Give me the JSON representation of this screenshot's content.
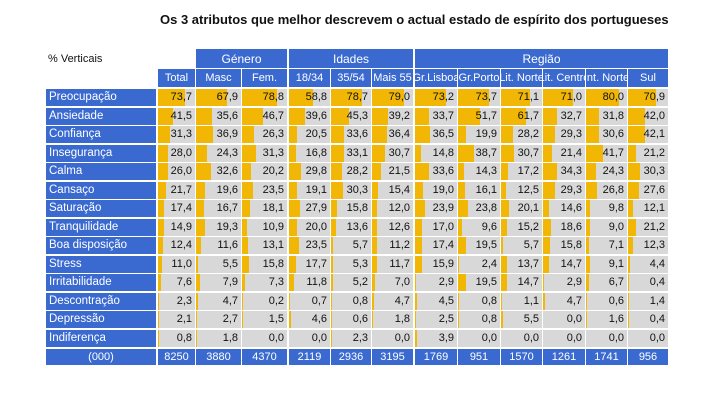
{
  "title": "Os 3 atributos que melhor descrevem o actual estado de espírito dos portugueses",
  "corner_label": "% Verticais",
  "groups": [
    "Género",
    "Idades",
    "Região"
  ],
  "columns": [
    "Total",
    "Masc",
    "Fem.",
    "18/34",
    "35/54",
    "Mais 55",
    "Gr.Lisboa",
    "Gr.Porto",
    "Lit. Norte",
    "Lit. Centro",
    "Int. Norte",
    "Sul"
  ],
  "rows": [
    {
      "label": "Preocupação",
      "values": [
        "73,7",
        "67,9",
        "78,8",
        "58,8",
        "78,7",
        "79,0",
        "73,2",
        "73,7",
        "71,1",
        "71,0",
        "80,0",
        "70,9"
      ]
    },
    {
      "label": "Ansiedade",
      "values": [
        "41,5",
        "35,6",
        "46,7",
        "39,6",
        "45,3",
        "39,2",
        "33,7",
        "51,7",
        "61,7",
        "32,7",
        "31,8",
        "42,0"
      ]
    },
    {
      "label": "Confiança",
      "values": [
        "31,3",
        "36,9",
        "26,3",
        "20,5",
        "33,6",
        "36,4",
        "36,5",
        "19,9",
        "28,2",
        "29,3",
        "30,6",
        "42,1"
      ]
    },
    {
      "label": "Insegurança",
      "values": [
        "28,0",
        "24,3",
        "31,3",
        "16,8",
        "33,1",
        "30,7",
        "14,8",
        "38,7",
        "30,7",
        "21,4",
        "41,7",
        "21,2"
      ]
    },
    {
      "label": "Calma",
      "values": [
        "26,0",
        "32,6",
        "20,2",
        "29,8",
        "28,2",
        "21,5",
        "33,6",
        "14,3",
        "17,2",
        "34,3",
        "24,3",
        "30,3"
      ]
    },
    {
      "label": "Cansaço",
      "values": [
        "21,7",
        "19,6",
        "23,5",
        "19,1",
        "30,3",
        "15,4",
        "19,0",
        "16,1",
        "12,5",
        "29,3",
        "26,8",
        "27,6"
      ]
    },
    {
      "label": "Saturação",
      "values": [
        "17,4",
        "16,7",
        "18,1",
        "27,9",
        "15,8",
        "12,0",
        "23,9",
        "23,8",
        "20,1",
        "14,6",
        "9,8",
        "12,1"
      ]
    },
    {
      "label": "Tranquilidade",
      "values": [
        "14,9",
        "19,3",
        "10,9",
        "20,0",
        "13,6",
        "12,6",
        "17,0",
        "9,6",
        "15,2",
        "18,6",
        "9,0",
        "21,2"
      ]
    },
    {
      "label": "Boa disposição",
      "values": [
        "12,4",
        "11,6",
        "13,1",
        "23,5",
        "5,7",
        "11,2",
        "17,4",
        "19,5",
        "5,7",
        "15,8",
        "7,1",
        "12,3"
      ]
    },
    {
      "label": "Stress",
      "values": [
        "11,0",
        "5,5",
        "15,8",
        "17,7",
        "5,3",
        "11,7",
        "15,9",
        "2,4",
        "13,7",
        "14,7",
        "9,1",
        "4,4"
      ]
    },
    {
      "label": "Irritabilidade",
      "values": [
        "7,6",
        "7,9",
        "7,3",
        "11,8",
        "5,2",
        "7,0",
        "2,9",
        "19,5",
        "14,7",
        "2,9",
        "6,7",
        "0,4"
      ]
    },
    {
      "label": "Descontração",
      "values": [
        "2,3",
        "4,7",
        "0,2",
        "0,7",
        "0,8",
        "4,7",
        "4,5",
        "0,8",
        "1,1",
        "4,7",
        "0,6",
        "1,4"
      ]
    },
    {
      "label": "Depressão",
      "values": [
        "2,1",
        "2,7",
        "1,5",
        "4,6",
        "0,6",
        "1,8",
        "2,5",
        "0,8",
        "5,5",
        "0,0",
        "1,6",
        "0,4"
      ]
    },
    {
      "label": "Indiferença",
      "values": [
        "0,8",
        "1,8",
        "0,0",
        "0,0",
        "2,3",
        "0,0",
        "3,9",
        "0,0",
        "0,0",
        "0,0",
        "0,0",
        "0,0"
      ]
    }
  ],
  "footer": {
    "label": "(000)",
    "values": [
      "8250",
      "3880",
      "4370",
      "2119",
      "2936",
      "3195",
      "1769",
      "951",
      "1570",
      "1261",
      "1741",
      "956"
    ]
  },
  "colors": {
    "header_bg": "#3a6ad0",
    "bar": "#f2b705",
    "cell_bg": "#d8d8d8",
    "text": "#111111"
  },
  "chart_data": {
    "type": "table",
    "title": "Os 3 atributos que melhor descrevem o actual estado de espírito dos portugueses",
    "unit_label": "% Verticais",
    "scale_max": 100,
    "groups": [
      {
        "name": "Género",
        "columns": [
          "Masc",
          "Fem."
        ]
      },
      {
        "name": "Idades",
        "columns": [
          "18/34",
          "35/54",
          "Mais 55"
        ]
      },
      {
        "name": "Região",
        "columns": [
          "Gr.Lisboa",
          "Gr.Porto",
          "Lit. Norte",
          "Lit. Centro",
          "Int. Norte",
          "Sul"
        ]
      }
    ],
    "columns": [
      "Total",
      "Masc",
      "Fem.",
      "18/34",
      "35/54",
      "Mais 55",
      "Gr.Lisboa",
      "Gr.Porto",
      "Lit. Norte",
      "Lit. Centro",
      "Int. Norte",
      "Sul"
    ],
    "rows": [
      "Preocupação",
      "Ansiedade",
      "Confiança",
      "Insegurança",
      "Calma",
      "Cansaço",
      "Saturação",
      "Tranquilidade",
      "Boa disposição",
      "Stress",
      "Irritabilidade",
      "Descontração",
      "Depressão",
      "Indiferença"
    ],
    "base_label": "(000)",
    "base": [
      8250,
      3880,
      4370,
      2119,
      2936,
      3195,
      1769,
      951,
      1570,
      1261,
      1741,
      956
    ]
  }
}
